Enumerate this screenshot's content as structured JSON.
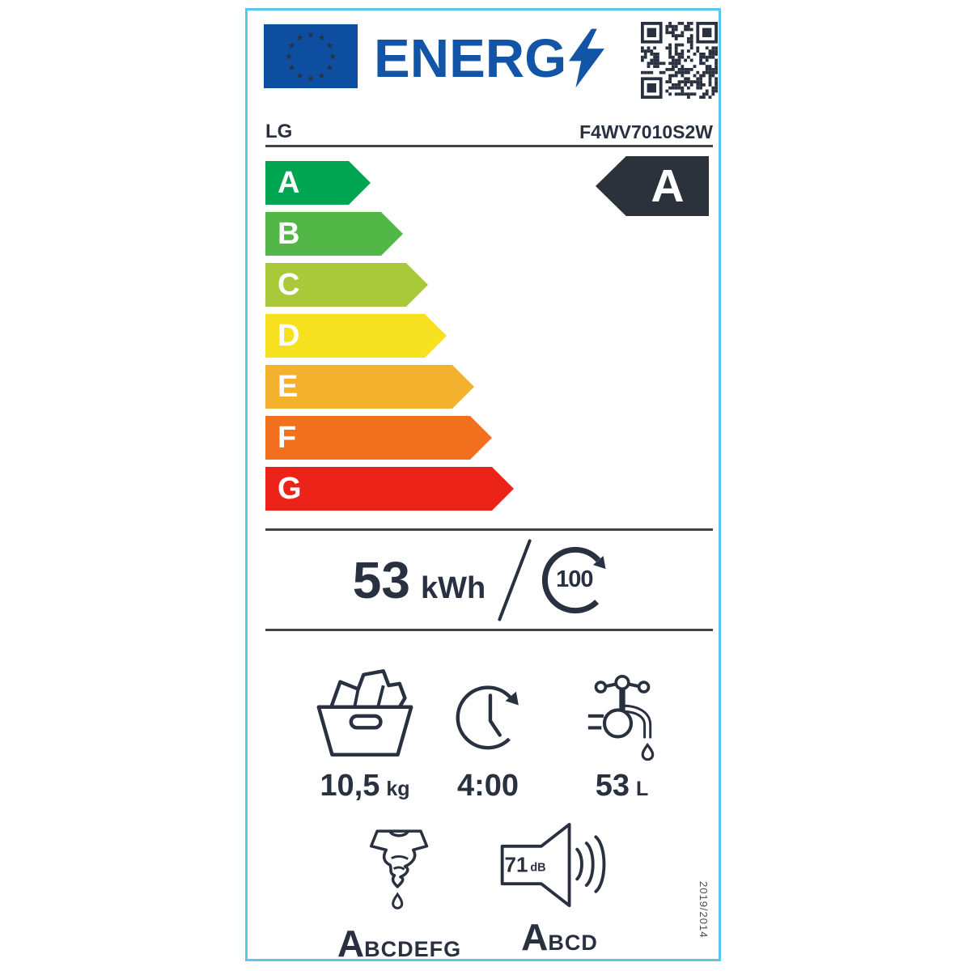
{
  "label": {
    "logo_text": "ENERG",
    "brand": "LG",
    "model": "F4WV7010S2W",
    "rating_letter": "A",
    "scale": [
      {
        "letter": "A",
        "color": "#00a551"
      },
      {
        "letter": "B",
        "color": "#52b747"
      },
      {
        "letter": "C",
        "color": "#a9c93a"
      },
      {
        "letter": "D",
        "color": "#f6e120"
      },
      {
        "letter": "E",
        "color": "#f4b12d"
      },
      {
        "letter": "F",
        "color": "#f3701e"
      },
      {
        "letter": "G",
        "color": "#ec2318"
      }
    ],
    "energy": {
      "value": "53",
      "unit": "kWh",
      "cycles": "100"
    },
    "capacity": {
      "value": "10,5",
      "unit": "kg"
    },
    "duration": {
      "value": "4:00"
    },
    "water": {
      "value": "53",
      "unit": "L"
    },
    "spin": {
      "grade": "A",
      "remaining": "BCDEFG"
    },
    "noise": {
      "db": "71",
      "db_unit": "dB",
      "grade": "A",
      "remaining": "BCD"
    },
    "regulation": "2019/2014",
    "colors": {
      "border": "#5ac8ea",
      "eu_blue": "#0d4ea0",
      "logo_blue": "#1254a6",
      "star_yellow": "#ffd617",
      "ink": "#293140",
      "rating_bg": "#2b323c"
    },
    "icons": {
      "flag": "eu-flag-icon",
      "logo_bolt": "lightning-bolt-icon",
      "qr": "qr-code",
      "cycles": "circular-arrow-100-icon",
      "capacity": "laundry-basket-icon",
      "duration": "clock-history-icon",
      "water": "water-tap-icon",
      "spin": "wrung-shirt-icon",
      "noise": "speaker-icon"
    }
  }
}
